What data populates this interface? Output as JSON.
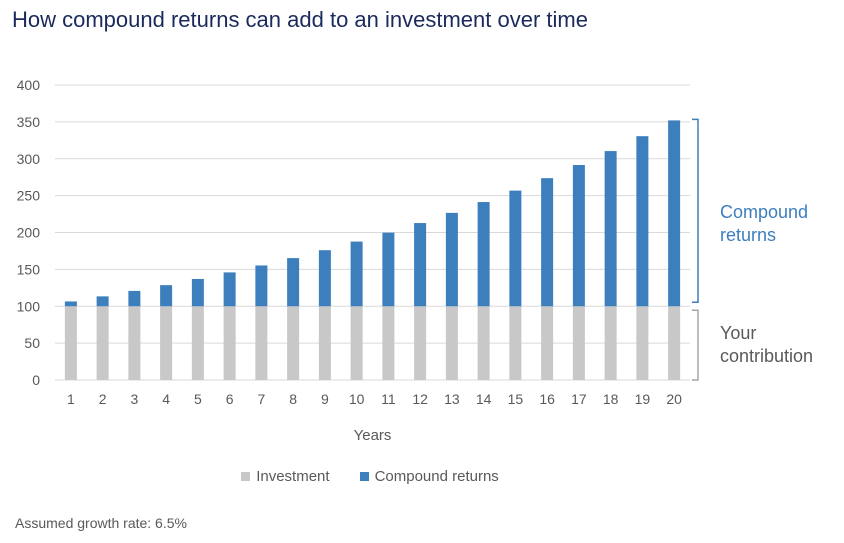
{
  "title": "How compound returns can add to an investment over time",
  "footnote": "Assumed growth rate: 6.5%",
  "colors": {
    "investment": "#c8c8c8",
    "compound": "#3d7ebd",
    "grid": "#d9d9d9"
  },
  "brackets": {
    "compound_label_1": "Compound",
    "compound_label_2": "returns",
    "contribution_label_1": "Your",
    "contribution_label_2": "contribution"
  },
  "legend": [
    {
      "label": "Investment",
      "color": "#c8c8c8"
    },
    {
      "label": "Compound returns",
      "color": "#3d7ebd"
    }
  ],
  "chart_data": {
    "type": "bar",
    "stacked": true,
    "categories": [
      "1",
      "2",
      "3",
      "4",
      "5",
      "6",
      "7",
      "8",
      "9",
      "10",
      "11",
      "12",
      "13",
      "14",
      "15",
      "16",
      "17",
      "18",
      "19",
      "20"
    ],
    "series": [
      {
        "name": "Investment",
        "values": [
          100,
          100,
          100,
          100,
          100,
          100,
          100,
          100,
          100,
          100,
          100,
          100,
          100,
          100,
          100,
          100,
          100,
          100,
          100,
          100
        ]
      },
      {
        "name": "Compound returns",
        "values": [
          6.5,
          13.4,
          20.8,
          28.6,
          37.0,
          45.9,
          55.3,
          65.3,
          76.0,
          87.7,
          99.8,
          112.8,
          126.6,
          141.3,
          156.8,
          173.7,
          191.5,
          210.4,
          230.6,
          252.0
        ]
      }
    ],
    "xlabel": "Years",
    "ylabel": "",
    "ylim": [
      0,
      400
    ],
    "yticks": [
      0,
      50,
      100,
      150,
      200,
      250,
      300,
      350,
      400
    ],
    "grid": true,
    "legend_position": "bottom"
  }
}
